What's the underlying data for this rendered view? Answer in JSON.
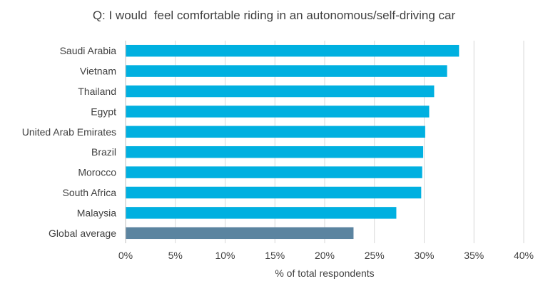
{
  "chart_data": {
    "type": "bar",
    "orientation": "horizontal",
    "title": "Q: I would  feel comfortable riding in an autonomous/self-driving car",
    "xlabel": "% of total respondents",
    "ylabel": "",
    "xlim": [
      0,
      40
    ],
    "x_ticks": [
      "0%",
      "5%",
      "10%",
      "15%",
      "20%",
      "25%",
      "30%",
      "35%",
      "40%"
    ],
    "grid": "vertical",
    "legend": "none",
    "categories": [
      "Saudi Arabia",
      "Vietnam",
      "Thailand",
      "Egypt",
      "United Arab Emirates",
      "Brazil",
      "Morocco",
      "South Africa",
      "Malaysia",
      "Global average"
    ],
    "values": [
      33.5,
      32.3,
      31.0,
      30.5,
      30.1,
      29.9,
      29.8,
      29.7,
      27.2,
      22.9
    ],
    "colors": {
      "bar": "#00B0E0",
      "highlight": "#5B84A0",
      "grid": "#D9D9D9",
      "axis": "#BFBFBF"
    },
    "highlight_category": "Global average"
  }
}
